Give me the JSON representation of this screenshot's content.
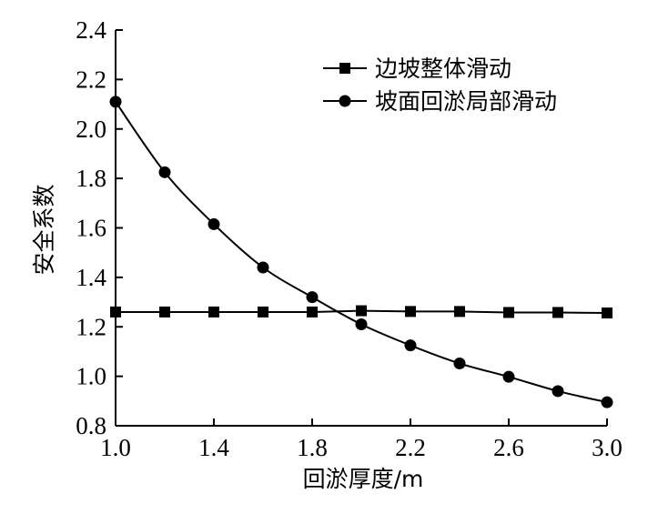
{
  "chart_data": {
    "type": "line",
    "title": "",
    "xlabel": "回淤厚度/m",
    "ylabel": "安全系数",
    "xlim": [
      1.0,
      3.0
    ],
    "ylim": [
      0.8,
      2.4
    ],
    "xticks": [
      1.0,
      1.4,
      1.8,
      2.2,
      2.6,
      3.0
    ],
    "xtick_labels": [
      "1.0",
      "1.4",
      "1.8",
      "2.2",
      "2.6",
      "3.0"
    ],
    "yticks": [
      0.8,
      1.0,
      1.2,
      1.4,
      1.6,
      1.8,
      2.0,
      2.2,
      2.4
    ],
    "ytick_labels": [
      "0.8",
      "1.0",
      "1.2",
      "1.4",
      "1.6",
      "1.8",
      "2.0",
      "2.2",
      "2.4"
    ],
    "grid": false,
    "legend_position": "top-right",
    "series": [
      {
        "name": "边坡整体滑动",
        "marker": "square",
        "x": [
          1.0,
          1.2,
          1.4,
          1.6,
          1.8,
          2.0,
          2.2,
          2.4,
          2.6,
          2.8,
          3.0
        ],
        "y": [
          1.26,
          1.26,
          1.26,
          1.26,
          1.26,
          1.265,
          1.262,
          1.262,
          1.258,
          1.258,
          1.256
        ]
      },
      {
        "name": "坡面回淤局部滑动",
        "marker": "circle",
        "x": [
          1.0,
          1.2,
          1.4,
          1.6,
          1.8,
          2.0,
          2.2,
          2.4,
          2.6,
          2.8,
          3.0
        ],
        "y": [
          2.11,
          1.825,
          1.615,
          1.44,
          1.32,
          1.21,
          1.125,
          1.052,
          0.998,
          0.94,
          0.895
        ]
      }
    ]
  }
}
